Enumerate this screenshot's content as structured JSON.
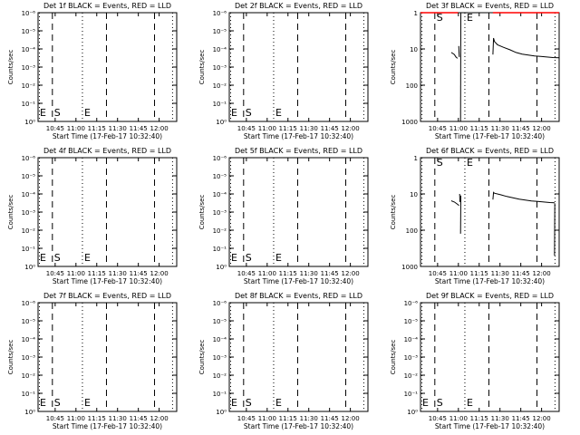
{
  "chart_data": [
    {
      "title": "Det 1f BLACK = Events, RED = LLD",
      "type": "line",
      "scale": "log",
      "yticks": [
        "10⁰",
        "10⁻¹",
        "10⁻²",
        "10⁻³",
        "10⁻⁴",
        "10⁻⁵",
        "10⁻⁶"
      ],
      "xticks": [
        "10:45",
        "11:00",
        "11:15",
        "11:30",
        "11:45",
        "12:00"
      ],
      "xlabel": "Start Time (17-Feb-17 10:32:40)",
      "ylabel": "Counts/sec",
      "markers": {
        "start": "S",
        "end": "E"
      },
      "series": []
    },
    {
      "title": "Det 2f BLACK = Events, RED = LLD",
      "type": "line",
      "scale": "log",
      "yticks": [
        "10⁰",
        "10⁻¹",
        "10⁻²",
        "10⁻³",
        "10⁻⁴",
        "10⁻⁵",
        "10⁻⁶"
      ],
      "xticks": [
        "10:45",
        "11:00",
        "11:15",
        "11:30",
        "11:45",
        "12:00"
      ],
      "xlabel": "Start Time (17-Feb-17 10:32:40)",
      "ylabel": "Counts/sec",
      "markers": {
        "start": "S",
        "end": "E"
      },
      "series": []
    },
    {
      "title": "Det 3f BLACK = Events, RED = LLD",
      "type": "line",
      "scale": "log",
      "yticks": [
        "1000",
        "100",
        "10",
        "1"
      ],
      "xticks": [
        "10:45",
        "11:00",
        "11:15",
        "11:30",
        "11:45",
        "12:00"
      ],
      "xlabel": "Start Time (17-Feb-17 10:32:40)",
      "ylabel": "Counts/sec",
      "markers": {
        "start": "S",
        "end": "E"
      },
      "series": [
        {
          "color": "#000000",
          "segments": [
            [
              [
                10.0,
                80
              ],
              [
                10.5,
                75
              ],
              [
                11.0,
                70
              ],
              [
                11.5,
                60
              ],
              [
                12.0,
                55
              ]
            ],
            [
              [
                12.4,
                120
              ],
              [
                12.6,
                60
              ]
            ],
            [
              [
                13.0,
                0.8
              ],
              [
                13.1,
                1000
              ]
            ],
            [
              [
                23.5,
                70
              ],
              [
                23.7,
                200
              ],
              [
                24.0,
                160
              ],
              [
                25.0,
                130
              ],
              [
                27.0,
                110
              ],
              [
                29.0,
                95
              ],
              [
                31.0,
                80
              ],
              [
                33.0,
                72
              ],
              [
                35.0,
                68
              ],
              [
                37.0,
                64
              ],
              [
                39.0,
                62
              ],
              [
                41.0,
                60
              ],
              [
                43.0,
                58
              ],
              [
                45.0,
                57
              ]
            ]
          ]
        },
        {
          "color": "#ff0000",
          "segments": [
            [
              [
                0,
                1000
              ],
              [
                12.2,
                1000
              ]
            ],
            [
              [
                23.5,
                1000
              ],
              [
                45.0,
                1000
              ]
            ]
          ]
        }
      ]
    },
    {
      "title": "Det 4f BLACK = Events, RED = LLD",
      "type": "line",
      "scale": "log",
      "yticks": [
        "10⁰",
        "10⁻¹",
        "10⁻²",
        "10⁻³",
        "10⁻⁴",
        "10⁻⁵",
        "10⁻⁶"
      ],
      "xticks": [
        "10:45",
        "11:00",
        "11:15",
        "11:30",
        "11:45",
        "12:00"
      ],
      "xlabel": "Start Time (17-Feb-17 10:32:40)",
      "ylabel": "Counts/sec",
      "markers": {
        "start": "S",
        "end": "E"
      },
      "series": []
    },
    {
      "title": "Det 5f BLACK = Events, RED = LLD",
      "type": "line",
      "scale": "log",
      "yticks": [
        "10⁰",
        "10⁻¹",
        "10⁻²",
        "10⁻³",
        "10⁻⁴",
        "10⁻⁵",
        "10⁻⁶"
      ],
      "xticks": [
        "10:45",
        "11:00",
        "11:15",
        "11:30",
        "11:45",
        "12:00"
      ],
      "xlabel": "Start Time (17-Feb-17 10:32:40)",
      "ylabel": "Counts/sec",
      "markers": {
        "start": "S",
        "end": "E"
      },
      "series": []
    },
    {
      "title": "Det 6f BLACK = Events, RED = LLD",
      "type": "line",
      "scale": "log",
      "yticks": [
        "1000",
        "100",
        "10",
        "1"
      ],
      "xticks": [
        "10:45",
        "11:00",
        "11:15",
        "11:30",
        "11:45",
        "12:00"
      ],
      "xlabel": "Start Time (17-Feb-17 10:32:40)",
      "ylabel": "Counts/sec",
      "markers": {
        "start": "S",
        "end": "E"
      },
      "series": [
        {
          "color": "#000000",
          "segments": [
            [
              [
                10.0,
                65
              ],
              [
                10.5,
                62
              ],
              [
                11.0,
                60
              ],
              [
                12.0,
                52
              ],
              [
                12.5,
                48
              ]
            ],
            [
              [
                12.7,
                100
              ],
              [
                12.8,
                60
              ]
            ],
            [
              [
                13.0,
                8
              ],
              [
                13.1,
                90
              ]
            ],
            [
              [
                23.5,
                70
              ],
              [
                23.7,
                110
              ],
              [
                24.0,
                105
              ],
              [
                26.0,
                95
              ],
              [
                28.0,
                85
              ],
              [
                30.0,
                78
              ],
              [
                32.0,
                72
              ],
              [
                34.0,
                68
              ],
              [
                36.0,
                64
              ],
              [
                38.0,
                62
              ],
              [
                40.0,
                60
              ],
              [
                42.0,
                58
              ],
              [
                43.5,
                57
              ]
            ],
            [
              [
                43.5,
                2
              ],
              [
                43.6,
                55
              ]
            ]
          ]
        }
      ]
    },
    {
      "title": "Det 7f BLACK = Events, RED = LLD",
      "type": "line",
      "scale": "log",
      "yticks": [
        "10⁰",
        "10⁻¹",
        "10⁻²",
        "10⁻³",
        "10⁻⁴",
        "10⁻⁵",
        "10⁻⁶"
      ],
      "xticks": [
        "10:45",
        "11:00",
        "11:15",
        "11:30",
        "11:45",
        "12:00"
      ],
      "xlabel": "Start Time (17-Feb-17 10:32:40)",
      "ylabel": "Counts/sec",
      "markers": {
        "start": "S",
        "end": "E"
      },
      "series": []
    },
    {
      "title": "Det 8f BLACK = Events, RED = LLD",
      "type": "line",
      "scale": "log",
      "yticks": [
        "10⁰",
        "10⁻¹",
        "10⁻²",
        "10⁻³",
        "10⁻⁴",
        "10⁻⁵",
        "10⁻⁶"
      ],
      "xticks": [
        "10:45",
        "11:00",
        "11:15",
        "11:30",
        "11:45",
        "12:00"
      ],
      "xlabel": "Start Time (17-Feb-17 10:32:40)",
      "ylabel": "Counts/sec",
      "markers": {
        "start": "S",
        "end": "E"
      },
      "series": []
    },
    {
      "title": "Det 9f BLACK = Events, RED = LLD",
      "type": "line",
      "scale": "log",
      "yticks": [
        "10⁰",
        "10⁻¹",
        "10⁻²",
        "10⁻³",
        "10⁻⁴",
        "10⁻⁵",
        "10⁻⁶"
      ],
      "xticks": [
        "10:45",
        "11:00",
        "11:15",
        "11:30",
        "11:45",
        "12:00"
      ],
      "xlabel": "Start Time (17-Feb-17 10:32:40)",
      "ylabel": "Counts/sec",
      "markers": {
        "start": "S",
        "end": "E"
      },
      "series": []
    }
  ]
}
